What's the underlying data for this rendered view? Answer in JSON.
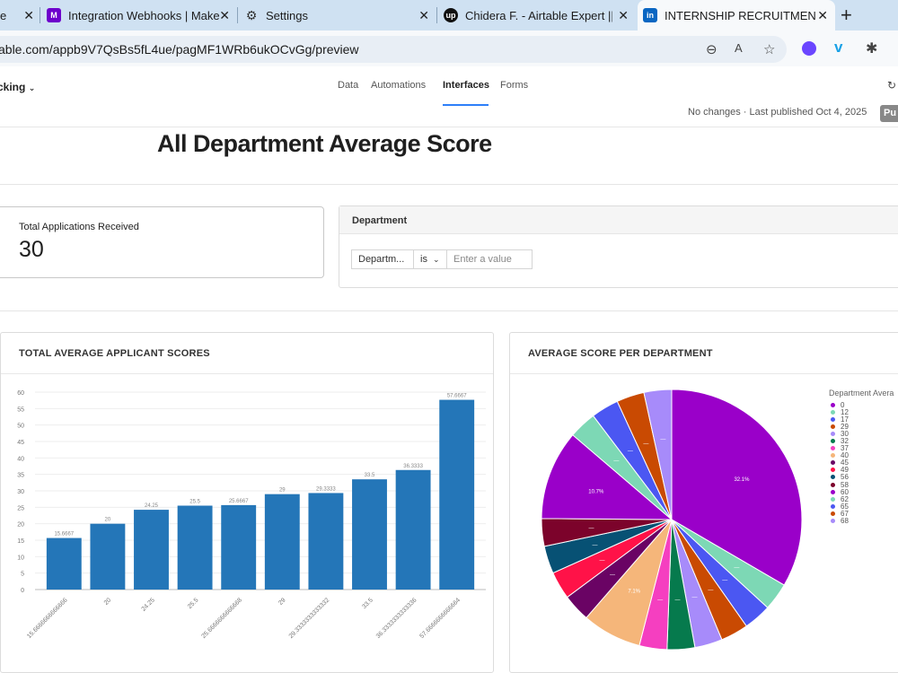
{
  "browser": {
    "tabs": [
      {
        "title": "e",
        "icon": "edge-icon",
        "color": "#2a6fd6",
        "glyph": ""
      },
      {
        "title": "Integration Webhooks | Make",
        "icon": "make-logo-icon",
        "color": "#6d00cc",
        "glyph": "M"
      },
      {
        "title": "Settings",
        "icon": "gear-icon",
        "color": "",
        "glyph": "⚙"
      },
      {
        "title": "Chidera F. - Airtable Expert || Z",
        "icon": "upwork-logo-icon",
        "color": "#111111",
        "glyph": "up"
      },
      {
        "title": "INTERNSHIP RECRUITMENT D",
        "icon": "linkedin-logo-icon",
        "color": "#0a66c2",
        "glyph": "in"
      }
    ],
    "url": "able.com/appb9V7QsBs5fL4ue/pagMF1WRb6ukOCvGg/preview"
  },
  "header": {
    "base_name": "cking",
    "nav": [
      "Data",
      "Automations",
      "Interfaces",
      "Forms"
    ],
    "active_nav": "Interfaces",
    "publish_status": "No changes · Last published Oct 4, 2025",
    "publish_button": "Pu"
  },
  "page": {
    "title": "All Department Average Score"
  },
  "kpi": {
    "label": "Total Applications Received",
    "value": "30"
  },
  "filter": {
    "title": "Department",
    "field": "Departm...",
    "operator": "is",
    "placeholder": "Enter a value"
  },
  "bar_card": {
    "title": "TOTAL AVERAGE APPLICANT SCORES"
  },
  "pie_card": {
    "title": "AVERAGE SCORE PER DEPARTMENT"
  },
  "chart_data": [
    {
      "type": "bar",
      "title": "TOTAL AVERAGE APPLICANT SCORES",
      "categories": [
        "15.6666666666666",
        "20",
        "24.25",
        "25.5",
        "25.6666666666668",
        "29",
        "29.3333333333332",
        "33.5",
        "36.3333333333336",
        "57.6666666666664"
      ],
      "value_labels": [
        "15.6667",
        "20",
        "24.25",
        "25.5",
        "25.6667",
        "29",
        "29.3333",
        "33.5",
        "36.3333",
        "57.6667"
      ],
      "values": [
        15.6667,
        20,
        24.25,
        25.5,
        25.6667,
        29,
        29.3333,
        33.5,
        36.3333,
        57.6667
      ],
      "ylim": [
        0,
        60
      ],
      "yticks": [
        0,
        5,
        10,
        15,
        20,
        25,
        30,
        35,
        40,
        45,
        50,
        55,
        60
      ],
      "color": "#2476b8",
      "grid": true
    },
    {
      "type": "pie",
      "title": "AVERAGE SCORE PER DEPARTMENT",
      "legend_title": "Department Avera",
      "legend_position": "right",
      "slices": [
        {
          "label": "0",
          "value": 32.1,
          "color": "#9a00c9",
          "text": "32.1%"
        },
        {
          "label": "12",
          "value": 3.3,
          "color": "#7dd8b5",
          "text": "—"
        },
        {
          "label": "17",
          "value": 3.3,
          "color": "#4b57f2",
          "text": "—"
        },
        {
          "label": "29",
          "value": 3.3,
          "color": "#c94a02",
          "text": "—"
        },
        {
          "label": "30",
          "value": 3.3,
          "color": "#a78bfa",
          "text": "—"
        },
        {
          "label": "32",
          "value": 3.3,
          "color": "#067a4d",
          "text": "—"
        },
        {
          "label": "37",
          "value": 3.3,
          "color": "#f53fc0",
          "text": "—"
        },
        {
          "label": "40",
          "value": 7.1,
          "color": "#f5b67a",
          "text": "7.1%"
        },
        {
          "label": "45",
          "value": 3.3,
          "color": "#6a0364",
          "text": "—"
        },
        {
          "label": "49",
          "value": 3.3,
          "color": "#ff1248",
          "text": "—"
        },
        {
          "label": "56",
          "value": 3.3,
          "color": "#075174",
          "text": "—"
        },
        {
          "label": "58",
          "value": 3.3,
          "color": "#7c032b",
          "text": "—"
        },
        {
          "label": "60",
          "value": 10.7,
          "color": "#9a00c9",
          "text": "10.7%"
        },
        {
          "label": "62",
          "value": 3.3,
          "color": "#7dd8b5",
          "text": "—"
        },
        {
          "label": "65",
          "value": 3.3,
          "color": "#4b57f2",
          "text": "—"
        },
        {
          "label": "67",
          "value": 3.3,
          "color": "#c94a02",
          "text": "—"
        },
        {
          "label": "68",
          "value": 3.3,
          "color": "#a78bfa",
          "text": "—"
        }
      ]
    }
  ]
}
